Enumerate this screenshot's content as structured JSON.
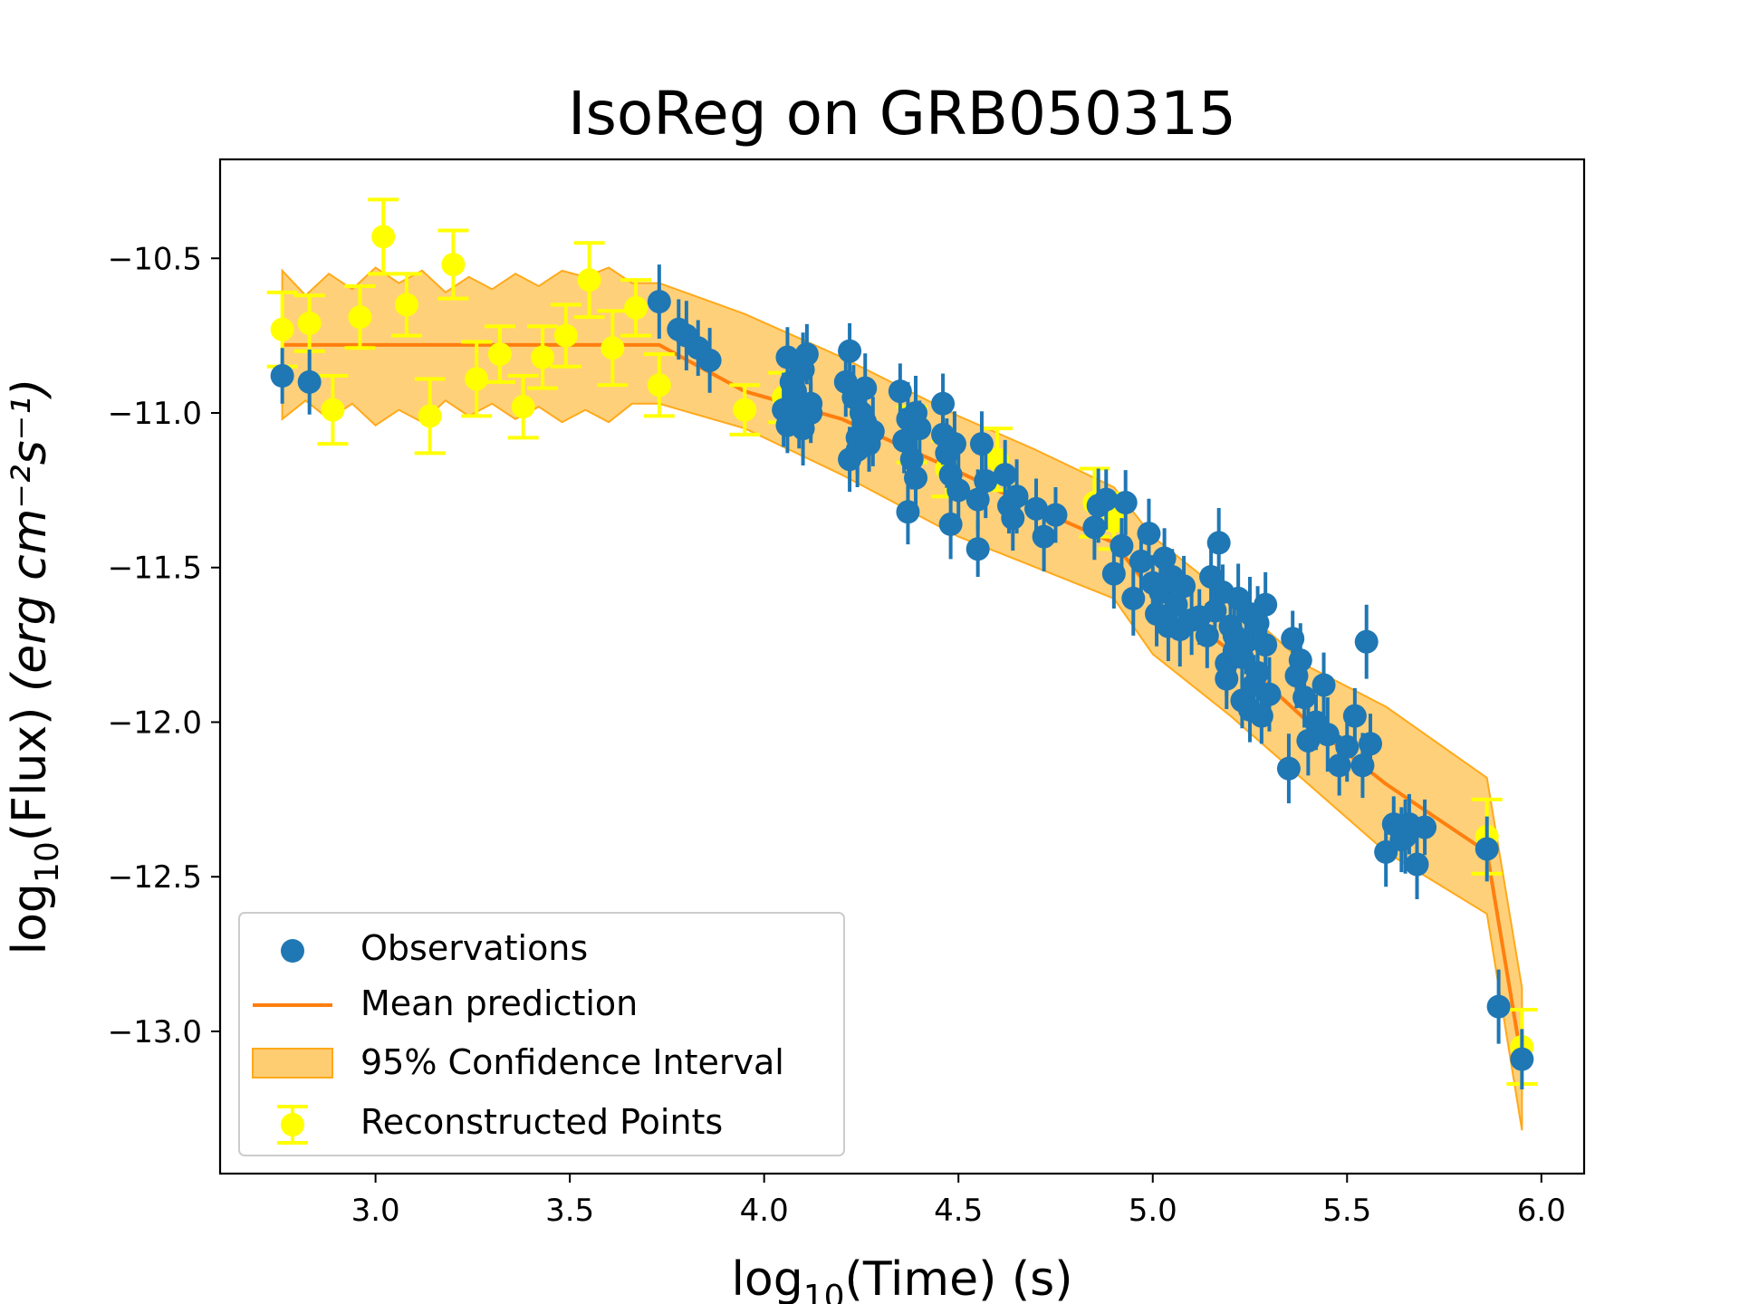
{
  "chart_data": {
    "type": "scatter",
    "title": "IsoReg on GRB050315",
    "xlabel": {
      "prefix": "log",
      "sub": "10",
      "suffix": "(Time) (s)"
    },
    "ylabel": {
      "prefix": "log",
      "sub": "10",
      "suffix": "(Flux) ",
      "units": "(erg cm⁻²s⁻¹)"
    },
    "xlim": [
      2.6,
      6.11
    ],
    "ylim": [
      -13.46,
      -10.18
    ],
    "xticks": [
      3.0,
      3.5,
      4.0,
      4.5,
      5.0,
      5.5,
      6.0
    ],
    "xtick_labels": [
      "3.0",
      "3.5",
      "4.0",
      "4.5",
      "5.0",
      "5.5",
      "6.0"
    ],
    "yticks": [
      -10.5,
      -11.0,
      -11.5,
      -12.0,
      -12.5,
      -13.0
    ],
    "ytick_labels": [
      "−10.5",
      "−11.0",
      "−11.5",
      "−12.0",
      "−12.5",
      "−13.0"
    ],
    "legend": {
      "position": "lower-left",
      "entries": [
        "Observations",
        "Mean prediction",
        "95% Confidence Interval",
        "Reconstructed Points"
      ]
    },
    "colors": {
      "observations": "#1f77b4",
      "mean": "#ff7f0e",
      "band_fill": "#ffc04d",
      "band_edge": "#ffa91a",
      "reconstructed": "#ffff00"
    },
    "mean_prediction": {
      "x": [
        2.76,
        3.73,
        3.95,
        4.2,
        4.5,
        4.7,
        4.9,
        5.0,
        5.2,
        5.4,
        5.6,
        5.86,
        5.95
      ],
      "y": [
        -10.78,
        -10.78,
        -10.93,
        -11.02,
        -11.19,
        -11.31,
        -11.42,
        -11.58,
        -11.77,
        -12.0,
        -12.2,
        -12.42,
        -13.1
      ]
    },
    "confidence_interval": {
      "x": [
        2.76,
        2.82,
        2.88,
        2.94,
        3.0,
        3.06,
        3.12,
        3.18,
        3.24,
        3.3,
        3.36,
        3.42,
        3.48,
        3.54,
        3.6,
        3.66,
        3.73,
        3.95,
        4.2,
        4.5,
        4.7,
        4.9,
        5.0,
        5.2,
        5.4,
        5.6,
        5.86,
        5.95
      ],
      "upper": [
        -10.54,
        -10.62,
        -10.55,
        -10.6,
        -10.53,
        -10.58,
        -10.54,
        -10.61,
        -10.56,
        -10.6,
        -10.55,
        -10.59,
        -10.54,
        -10.56,
        -10.53,
        -10.58,
        -10.58,
        -10.68,
        -10.82,
        -11.01,
        -11.12,
        -11.24,
        -11.4,
        -11.6,
        -11.82,
        -11.95,
        -12.18,
        -12.86
      ],
      "lower": [
        -11.02,
        -10.96,
        -11.02,
        -10.97,
        -11.04,
        -10.99,
        -11.03,
        -10.96,
        -11.01,
        -10.97,
        -11.02,
        -10.98,
        -11.03,
        -10.99,
        -11.03,
        -10.97,
        -10.97,
        -11.05,
        -11.2,
        -11.4,
        -11.5,
        -11.6,
        -11.78,
        -11.98,
        -12.2,
        -12.42,
        -12.62,
        -13.32
      ]
    },
    "reconstructed_points": {
      "x": [
        2.76,
        2.83,
        2.89,
        2.96,
        3.02,
        3.08,
        3.14,
        3.2,
        3.26,
        3.32,
        3.38,
        3.43,
        3.49,
        3.55,
        3.61,
        3.67,
        3.73,
        3.95,
        4.05,
        4.38,
        4.47,
        4.6,
        4.85,
        4.9,
        5.86,
        5.95
      ],
      "y": [
        -10.73,
        -10.71,
        -10.99,
        -10.69,
        -10.43,
        -10.65,
        -11.01,
        -10.52,
        -10.89,
        -10.81,
        -10.98,
        -10.82,
        -10.75,
        -10.57,
        -10.79,
        -10.66,
        -10.91,
        -10.99,
        -10.95,
        -11.07,
        -11.18,
        -11.15,
        -11.29,
        -11.35,
        -12.37,
        -13.05
      ],
      "err": [
        0.12,
        0.09,
        0.11,
        0.1,
        0.12,
        0.1,
        0.12,
        0.11,
        0.12,
        0.09,
        0.1,
        0.1,
        0.1,
        0.12,
        0.12,
        0.09,
        0.1,
        0.08,
        0.08,
        0.09,
        0.09,
        0.1,
        0.11,
        0.09,
        0.12,
        0.12
      ]
    },
    "observations": {
      "x": [
        2.76,
        2.83,
        3.73,
        3.78,
        3.8,
        3.83,
        3.86,
        4.05,
        4.06,
        4.07,
        4.08,
        4.09,
        4.1,
        4.11,
        4.12,
        4.06,
        4.08,
        4.1,
        4.12,
        4.21,
        4.22,
        4.23,
        4.24,
        4.25,
        4.26,
        4.27,
        4.22,
        4.24,
        4.26,
        4.28,
        4.35,
        4.36,
        4.37,
        4.38,
        4.39,
        4.4,
        4.37,
        4.39,
        4.46,
        4.47,
        4.48,
        4.49,
        4.5,
        4.46,
        4.48,
        4.55,
        4.56,
        4.57,
        4.55,
        4.62,
        4.63,
        4.64,
        4.65,
        4.7,
        4.72,
        4.75,
        4.85,
        4.86,
        4.88,
        4.9,
        4.92,
        4.93,
        4.95,
        4.97,
        4.99,
        5.0,
        5.01,
        5.02,
        5.03,
        5.04,
        5.05,
        5.06,
        5.07,
        5.08,
        5.1,
        5.12,
        5.14,
        5.15,
        5.16,
        5.17,
        5.18,
        5.19,
        5.2,
        5.21,
        5.22,
        5.23,
        5.24,
        5.25,
        5.26,
        5.27,
        5.28,
        5.29,
        5.3,
        5.19,
        5.21,
        5.23,
        5.25,
        5.27,
        5.29,
        5.35,
        5.36,
        5.37,
        5.38,
        5.39,
        5.4,
        5.42,
        5.44,
        5.45,
        5.48,
        5.5,
        5.52,
        5.54,
        5.55,
        5.56,
        5.6,
        5.62,
        5.64,
        5.65,
        5.66,
        5.68,
        5.7,
        5.86,
        5.89,
        5.95
      ],
      "y": [
        -10.88,
        -10.9,
        -10.64,
        -10.73,
        -10.75,
        -10.79,
        -10.83,
        -10.99,
        -10.82,
        -10.9,
        -10.95,
        -11.01,
        -10.86,
        -10.81,
        -10.97,
        -11.04,
        -10.93,
        -11.05,
        -11.0,
        -10.9,
        -10.8,
        -10.95,
        -11.08,
        -11.0,
        -10.92,
        -11.1,
        -11.15,
        -11.12,
        -11.03,
        -11.06,
        -10.93,
        -11.09,
        -11.02,
        -11.15,
        -11.21,
        -11.05,
        -11.32,
        -11.0,
        -10.97,
        -11.13,
        -11.2,
        -11.1,
        -11.25,
        -11.07,
        -11.36,
        -11.44,
        -11.1,
        -11.22,
        -11.28,
        -11.2,
        -11.3,
        -11.34,
        -11.27,
        -11.31,
        -11.4,
        -11.33,
        -11.37,
        -11.3,
        -11.28,
        -11.52,
        -11.43,
        -11.29,
        -11.6,
        -11.48,
        -11.39,
        -11.55,
        -11.65,
        -11.58,
        -11.47,
        -11.69,
        -11.53,
        -11.62,
        -11.7,
        -11.56,
        -11.67,
        -11.66,
        -11.72,
        -11.53,
        -11.64,
        -11.42,
        -11.58,
        -11.81,
        -11.69,
        -11.77,
        -11.6,
        -11.93,
        -11.74,
        -11.65,
        -11.88,
        -11.84,
        -11.98,
        -11.62,
        -11.91,
        -11.86,
        -11.72,
        -11.79,
        -11.96,
        -11.68,
        -11.75,
        -12.15,
        -11.73,
        -11.85,
        -11.8,
        -11.92,
        -12.06,
        -12.0,
        -11.88,
        -12.04,
        -12.14,
        -12.08,
        -11.98,
        -12.14,
        -11.74,
        -12.07,
        -12.42,
        -12.33,
        -12.38,
        -12.37,
        -12.33,
        -12.46,
        -12.34,
        -12.41,
        -12.92,
        -13.09
      ]
    }
  }
}
